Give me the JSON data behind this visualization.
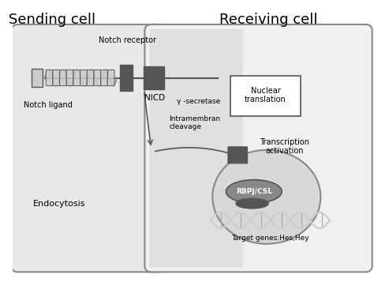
{
  "bg_color": "#ffffff",
  "cell_fill": "#e8e8e8",
  "cell_edge": "#888888",
  "dark_gray": "#555555",
  "medium_gray": "#888888",
  "light_gray": "#cccccc",
  "sending_cell_title": "Sending cell",
  "receiving_cell_title": "Receiving cell",
  "notch_receptor_label": "Notch receptor",
  "notch_ligand_label": "Notch ligand",
  "nicd_label": "NICD",
  "gamma_secretase_label": "γ -secretase",
  "intramembran_label": "Intramembran\ncleavage",
  "nuclear_translation_label": "Nuclear\ntranslation",
  "transcription_label": "Transcription\nactivation",
  "rbpj_label": "RBPJ/CSL",
  "target_genes_label": "Target genes:Hes,Hey",
  "endocytosis_label": "Endocytosis"
}
